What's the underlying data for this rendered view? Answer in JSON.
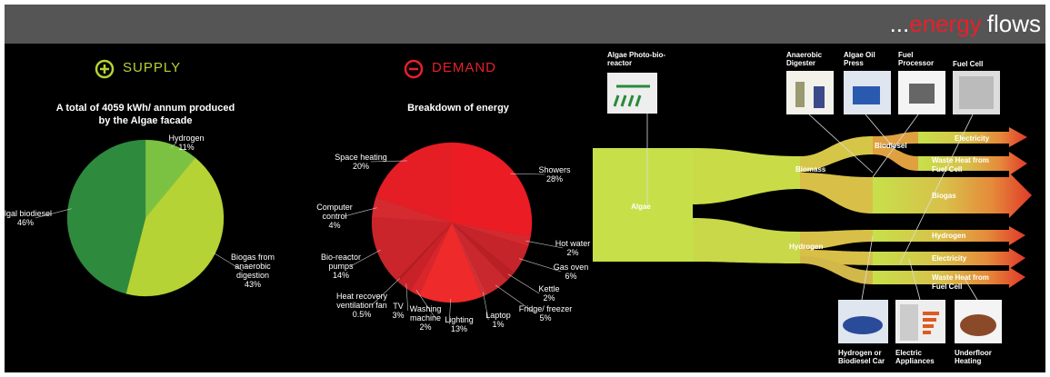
{
  "header": {
    "dots": "...",
    "energy": "energy",
    "flows": "flows"
  },
  "chart_data": [
    {
      "type": "pie",
      "title": "SUPPLY",
      "subtitle": "A total of 4059 kWh/ annum produced by the Algae facade",
      "categories": [
        "Hydrogen",
        "Biogas from anaerobic digestion",
        "Algal biodiesel"
      ],
      "values": [
        11,
        43,
        46
      ],
      "value_labels": [
        "11%",
        "43%",
        "46%"
      ],
      "colors": [
        "#7cc242",
        "#b5d334",
        "#2e8b3e"
      ]
    },
    {
      "type": "pie",
      "title": "DEMAND",
      "subtitle": "Breakdown of energy",
      "categories": [
        "Showers",
        "Hot water",
        "Gas oven",
        "Kettle",
        "Fridge/ freezer",
        "Laptop",
        "Lighting",
        "Washing machine",
        "TV",
        "Heat recovery ventilation fan",
        "Bio-reactor pumps",
        "Computer control",
        "Space heating"
      ],
      "values": [
        28,
        2,
        6,
        2,
        5,
        1,
        13,
        2,
        3,
        0.5,
        14,
        4,
        20
      ],
      "value_labels": [
        "28%",
        "2%",
        "6%",
        "2%",
        "5%",
        "1%",
        "13%",
        "2%",
        "3%",
        "0.5%",
        "14%",
        "4%",
        "20%"
      ],
      "colors": [
        "#ec1c24",
        "#d42a2f",
        "#c4242a",
        "#b82025",
        "#c8282e",
        "#d03036",
        "#ee2a2a",
        "#d8262c",
        "#c82228",
        "#b01e22",
        "#c9252b",
        "#d42a30",
        "#e51e26"
      ]
    }
  ],
  "flows": {
    "algae": "Algae",
    "biomass": "Biomass",
    "hydrogen": "Hydrogen",
    "biodiesel": "Biodiesel",
    "biogas": "Biogas",
    "electricity_top": "Electricity",
    "waste_heat_top": [
      "Waste Heat from",
      "Fuel Cell"
    ],
    "hydrogen_out": "Hydrogen",
    "electricity_bottom": "Electricity",
    "waste_heat_bottom": [
      "Waste Heat from",
      "Fuel Cell"
    ],
    "captions": [
      "Algae Photo-bio-reactor",
      "Anaerobic Digester",
      "Algae Oil Press",
      "Fuel Processor",
      "Fuel Cell",
      "Hydrogen or Biodiesel Car",
      "Electric Appliances",
      "Underfloor Heating"
    ]
  }
}
